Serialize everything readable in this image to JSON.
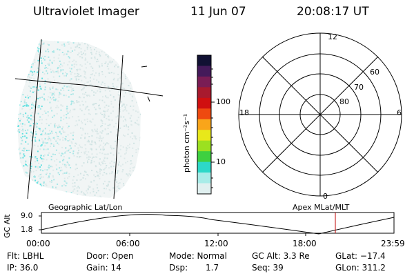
{
  "header": {
    "instrument": "Ultraviolet Imager",
    "date": "11 Jun 07",
    "time": "20:08:17 UT"
  },
  "colorbar": {
    "unit_label": "photon cm⁻²s⁻¹",
    "ticks": [
      "100",
      "10"
    ],
    "colors": [
      "#111133",
      "#441a5a",
      "#7a1d55",
      "#a81a2e",
      "#d01010",
      "#ee4a10",
      "#f9a51a",
      "#e8e81a",
      "#9ce020",
      "#3ed040",
      "#2dd8c8",
      "#a8ece8",
      "#e0f0f0"
    ]
  },
  "polar_grid": {
    "mlt_labels": {
      "top": "12",
      "bottom": "0",
      "left": "18",
      "right": "6"
    },
    "lat_labels": [
      "60",
      "70",
      "80"
    ]
  },
  "timeline": {
    "ylabel": "GC Alt",
    "yticks": [
      "9.0",
      "1.8"
    ],
    "left_caption": "Geographic Lat/Lon",
    "right_caption": "Apex MLat/MLT",
    "xticks": [
      "00:00",
      "06:00",
      "12:00",
      "18:00",
      "23:59"
    ]
  },
  "status": {
    "filter": "Flt: LBHL",
    "door": "Door: Open",
    "mode": "Mode: Normal",
    "gc_alt": "GC Alt: 3.3 Re",
    "glat": "GLat: −17.4",
    "ip": "IP: 36.0",
    "gain": "Gain: 14",
    "dsp_label": "Dsp:",
    "dsp_value": "1.7",
    "seq": "Seq: 39",
    "glon": "GLon: 311.2"
  },
  "icons": {
    "geographic_image": "auroral-image",
    "polar_plot": "polar-grid-icon"
  }
}
